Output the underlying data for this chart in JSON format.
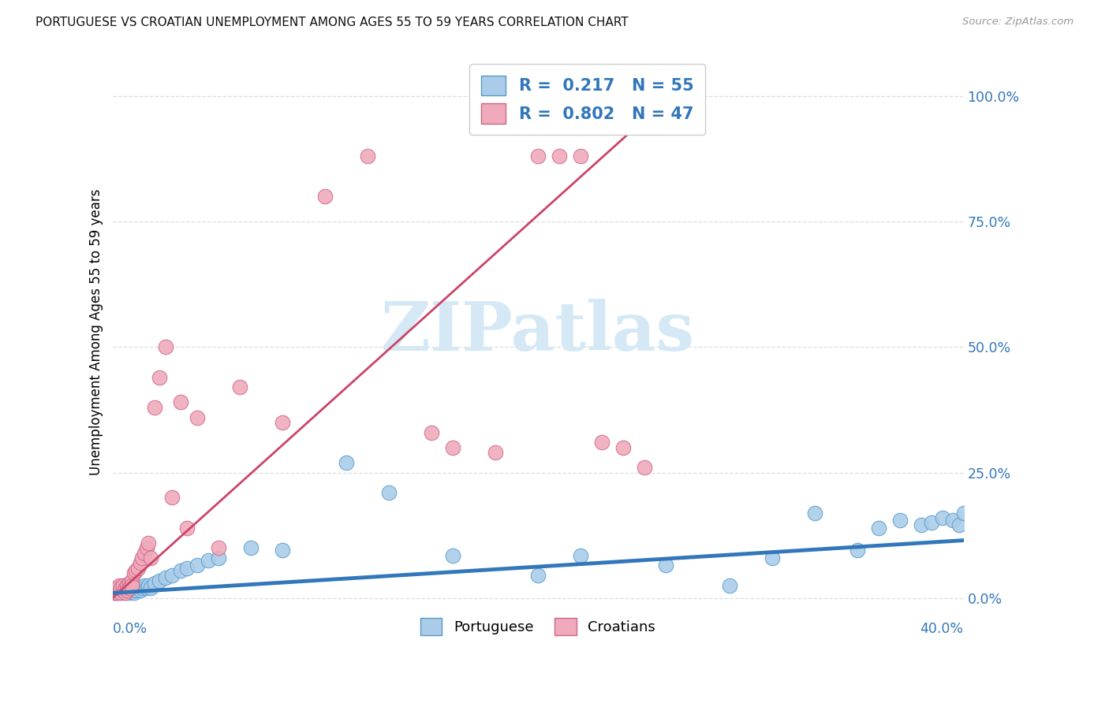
{
  "title": "PORTUGUESE VS CROATIAN UNEMPLOYMENT AMONG AGES 55 TO 59 YEARS CORRELATION CHART",
  "source": "Source: ZipAtlas.com",
  "ylabel": "Unemployment Among Ages 55 to 59 years",
  "ytick_labels": [
    "0.0%",
    "25.0%",
    "50.0%",
    "75.0%",
    "100.0%"
  ],
  "ytick_values": [
    0.0,
    0.25,
    0.5,
    0.75,
    1.0
  ],
  "xlim": [
    0.0,
    0.4
  ],
  "ylim": [
    -0.01,
    1.07
  ],
  "blue_scatter_color": "#AACCE8",
  "blue_scatter_edge": "#5599CC",
  "pink_scatter_color": "#F0AABC",
  "pink_scatter_edge": "#CC6688",
  "blue_line_color": "#3377BB",
  "pink_line_color": "#CC4466",
  "grid_color": "#DDDDDD",
  "title_color": "#111111",
  "source_color": "#999999",
  "legend_color": "#3377BB",
  "watermark_color": "#D5E8F5",
  "portuguese_x": [
    0.001,
    0.002,
    0.003,
    0.003,
    0.004,
    0.004,
    0.005,
    0.005,
    0.006,
    0.006,
    0.007,
    0.007,
    0.008,
    0.008,
    0.009,
    0.009,
    0.01,
    0.01,
    0.011,
    0.012,
    0.013,
    0.014,
    0.015,
    0.016,
    0.017,
    0.018,
    0.02,
    0.022,
    0.025,
    0.028,
    0.032,
    0.035,
    0.04,
    0.045,
    0.05,
    0.065,
    0.08,
    0.11,
    0.13,
    0.16,
    0.2,
    0.22,
    0.26,
    0.29,
    0.31,
    0.33,
    0.35,
    0.36,
    0.37,
    0.38,
    0.385,
    0.39,
    0.395,
    0.398,
    0.4
  ],
  "portuguese_y": [
    0.01,
    0.01,
    0.015,
    0.02,
    0.01,
    0.02,
    0.015,
    0.025,
    0.01,
    0.02,
    0.015,
    0.02,
    0.01,
    0.025,
    0.015,
    0.02,
    0.01,
    0.025,
    0.015,
    0.02,
    0.015,
    0.02,
    0.025,
    0.02,
    0.025,
    0.02,
    0.03,
    0.035,
    0.04,
    0.045,
    0.055,
    0.06,
    0.065,
    0.075,
    0.08,
    0.1,
    0.095,
    0.27,
    0.21,
    0.085,
    0.045,
    0.085,
    0.065,
    0.025,
    0.08,
    0.17,
    0.095,
    0.14,
    0.155,
    0.145,
    0.15,
    0.16,
    0.155,
    0.145,
    0.17
  ],
  "croatian_x": [
    0.001,
    0.002,
    0.002,
    0.003,
    0.003,
    0.004,
    0.004,
    0.005,
    0.005,
    0.006,
    0.006,
    0.007,
    0.007,
    0.008,
    0.008,
    0.009,
    0.009,
    0.01,
    0.011,
    0.012,
    0.013,
    0.014,
    0.015,
    0.016,
    0.017,
    0.018,
    0.02,
    0.022,
    0.025,
    0.028,
    0.032,
    0.035,
    0.04,
    0.05,
    0.06,
    0.08,
    0.1,
    0.12,
    0.15,
    0.16,
    0.18,
    0.2,
    0.21,
    0.22,
    0.23,
    0.24,
    0.25
  ],
  "croatian_y": [
    0.01,
    0.01,
    0.02,
    0.015,
    0.025,
    0.01,
    0.02,
    0.015,
    0.025,
    0.01,
    0.02,
    0.025,
    0.015,
    0.03,
    0.02,
    0.035,
    0.025,
    0.05,
    0.055,
    0.06,
    0.07,
    0.08,
    0.09,
    0.1,
    0.11,
    0.08,
    0.38,
    0.44,
    0.5,
    0.2,
    0.39,
    0.14,
    0.36,
    0.1,
    0.42,
    0.35,
    0.8,
    0.88,
    0.33,
    0.3,
    0.29,
    0.88,
    0.88,
    0.88,
    0.31,
    0.3,
    0.26
  ],
  "pink_line_x": [
    0.0,
    0.27
  ],
  "pink_line_y": [
    0.0,
    1.03
  ],
  "blue_line_x": [
    0.0,
    0.4
  ],
  "blue_line_y": [
    0.01,
    0.115
  ]
}
